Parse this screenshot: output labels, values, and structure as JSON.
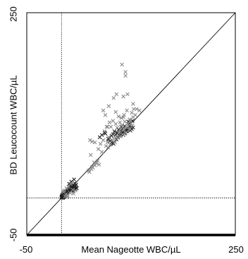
{
  "chart_data": {
    "type": "scatter",
    "title": "",
    "xlabel": "Mean Nageotte WBC/µL",
    "ylabel": "BD Leucocount WBC/µL",
    "xlim": [
      -50,
      250
    ],
    "ylim": [
      -50,
      250
    ],
    "x_tick_labels": [
      "-50",
      "250"
    ],
    "y_tick_labels": [
      "-50",
      "250"
    ],
    "grid": false,
    "reference_lines": {
      "identity": true,
      "vertical_x": 0,
      "horizontal_y": 0
    },
    "colors": {
      "dark_marker": "#222222",
      "light_marker": "#8a8a8a",
      "line": "#000000"
    },
    "series": [
      {
        "color": "dark",
        "points": [
          [
            0,
            0
          ],
          [
            0,
            1
          ],
          [
            1,
            1
          ],
          [
            0,
            2
          ],
          [
            1,
            3
          ],
          [
            2,
            1
          ],
          [
            2,
            2
          ],
          [
            3,
            3
          ],
          [
            1,
            4
          ],
          [
            2,
            5
          ],
          [
            3,
            6
          ],
          [
            4,
            4
          ],
          [
            5,
            5
          ],
          [
            4,
            7
          ],
          [
            5,
            8
          ],
          [
            6,
            6
          ],
          [
            7,
            7
          ],
          [
            6,
            9
          ],
          [
            8,
            8
          ],
          [
            2,
            0
          ],
          [
            3,
            1
          ],
          [
            1,
            2
          ],
          [
            4,
            2
          ],
          [
            5,
            3
          ],
          [
            8,
            10
          ],
          [
            9,
            11
          ],
          [
            10,
            12
          ],
          [
            11,
            10
          ],
          [
            12,
            13
          ],
          [
            13,
            11
          ],
          [
            14,
            12
          ],
          [
            15,
            14
          ],
          [
            12,
            16
          ],
          [
            14,
            15
          ],
          [
            16,
            13
          ],
          [
            18,
            14
          ],
          [
            19,
            15
          ],
          [
            20,
            16
          ],
          [
            21,
            14
          ],
          [
            17,
            17
          ],
          [
            22,
            13
          ],
          [
            15,
            10
          ],
          [
            17,
            9
          ],
          [
            11,
            8
          ],
          [
            9,
            9
          ],
          [
            13,
            16
          ],
          [
            16,
            17
          ],
          [
            18,
            16
          ],
          [
            19,
            13
          ],
          [
            20,
            12
          ],
          [
            11,
            19
          ],
          [
            14,
            22
          ],
          [
            18,
            25
          ],
          [
            19,
            20
          ],
          [
            21,
            18
          ],
          [
            55,
            82
          ],
          [
            58,
            85
          ],
          [
            63,
            87
          ],
          [
            67,
            80
          ],
          [
            70,
            77
          ],
          [
            72,
            84
          ],
          [
            74,
            86
          ],
          [
            76,
            90
          ],
          [
            78,
            85
          ],
          [
            80,
            88
          ],
          [
            82,
            92
          ],
          [
            84,
            87
          ],
          [
            86,
            91
          ],
          [
            88,
            94
          ],
          [
            90,
            89
          ],
          [
            92,
            93
          ],
          [
            94,
            90
          ],
          [
            96,
            94
          ],
          [
            98,
            98
          ],
          [
            100,
            95
          ],
          [
            79,
            79
          ],
          [
            81,
            82
          ],
          [
            83,
            84
          ],
          [
            85,
            86
          ],
          [
            87,
            88
          ],
          [
            89,
            85
          ],
          [
            91,
            87
          ],
          [
            93,
            90
          ],
          [
            95,
            92
          ],
          [
            97,
            96
          ],
          [
            99,
            91
          ],
          [
            101,
            93
          ],
          [
            103,
            95
          ],
          [
            96,
            103
          ],
          [
            98,
            101
          ],
          [
            91,
            97
          ],
          [
            86,
            96
          ],
          [
            102,
            104
          ],
          [
            72,
            75
          ],
          [
            75,
            73
          ],
          [
            68,
            79
          ],
          [
            62,
            88
          ]
        ]
      },
      {
        "color": "light",
        "points": [
          [
            3,
            8
          ],
          [
            6,
            5
          ],
          [
            9,
            3
          ],
          [
            4,
            10
          ],
          [
            7,
            13
          ],
          [
            10,
            15
          ],
          [
            16,
            11
          ],
          [
            13,
            19
          ],
          [
            17,
            6
          ],
          [
            20,
            10
          ],
          [
            5,
            2
          ],
          [
            8,
            1
          ],
          [
            12,
            7
          ],
          [
            39,
            37
          ],
          [
            40,
            35
          ],
          [
            43,
            39
          ],
          [
            45,
            41
          ],
          [
            48,
            44
          ],
          [
            50,
            47
          ],
          [
            52,
            50
          ],
          [
            54,
            45
          ],
          [
            44,
            42
          ],
          [
            47,
            48
          ],
          [
            42,
            58
          ],
          [
            53,
            66
          ],
          [
            56,
            73
          ],
          [
            60,
            78
          ],
          [
            58,
            62
          ],
          [
            64,
            70
          ],
          [
            66,
            75
          ],
          [
            68,
            82
          ],
          [
            70,
            72
          ],
          [
            73,
            78
          ],
          [
            75,
            80
          ],
          [
            77,
            75
          ],
          [
            79,
            83
          ],
          [
            81,
            81
          ],
          [
            83,
            88
          ],
          [
            85,
            83
          ],
          [
            88,
            86
          ],
          [
            90,
            92
          ],
          [
            92,
            88
          ],
          [
            94,
            95
          ],
          [
            96,
            97
          ],
          [
            98,
            93
          ],
          [
            100,
            100
          ],
          [
            102,
            98
          ],
          [
            78,
            116
          ],
          [
            82,
            110
          ],
          [
            86,
            108
          ],
          [
            90,
            112
          ],
          [
            94,
            118
          ],
          [
            98,
            106
          ],
          [
            101,
            115
          ],
          [
            104,
            120
          ],
          [
            48,
            75
          ],
          [
            62,
            90
          ],
          [
            67,
            68
          ],
          [
            69,
            102
          ],
          [
            71,
            96
          ],
          [
            74,
            104
          ],
          [
            78,
            100
          ],
          [
            80,
            95
          ],
          [
            84,
            102
          ],
          [
            87,
            98
          ],
          [
            91,
            103
          ],
          [
            95,
            100
          ],
          [
            99,
            104
          ],
          [
            103,
            109
          ],
          [
            106,
            112
          ],
          [
            108,
            120
          ],
          [
            112,
            118
          ],
          [
            63,
            112
          ],
          [
            60,
            118
          ],
          [
            103,
            127
          ],
          [
            87,
            180
          ],
          [
            92,
            165
          ],
          [
            95,
            140
          ],
          [
            89,
            137
          ],
          [
            79,
            140
          ],
          [
            92,
            170
          ],
          [
            75,
            135
          ],
          [
            68,
            124
          ],
          [
            44,
            76
          ],
          [
            66,
            96
          ],
          [
            41,
            78
          ],
          [
            65,
            96
          ],
          [
            85,
            93
          ],
          [
            89,
            109
          ]
        ]
      }
    ]
  }
}
